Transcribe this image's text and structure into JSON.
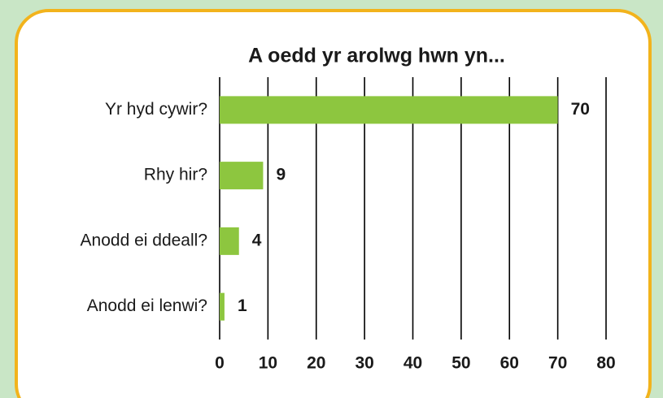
{
  "chart_data": {
    "type": "bar",
    "orientation": "horizontal",
    "title": "A oedd yr arolwg hwn yn...",
    "categories": [
      "Yr hyd cywir?",
      "Rhy hir?",
      "Anodd ei ddeall?",
      "Anodd ei lenwi?"
    ],
    "values": [
      70,
      9,
      4,
      1
    ],
    "color": "#8dc63f",
    "xlim": [
      0,
      80
    ],
    "xticks": [
      0,
      10,
      20,
      30,
      40,
      50,
      60,
      70,
      80
    ],
    "grid": true
  }
}
